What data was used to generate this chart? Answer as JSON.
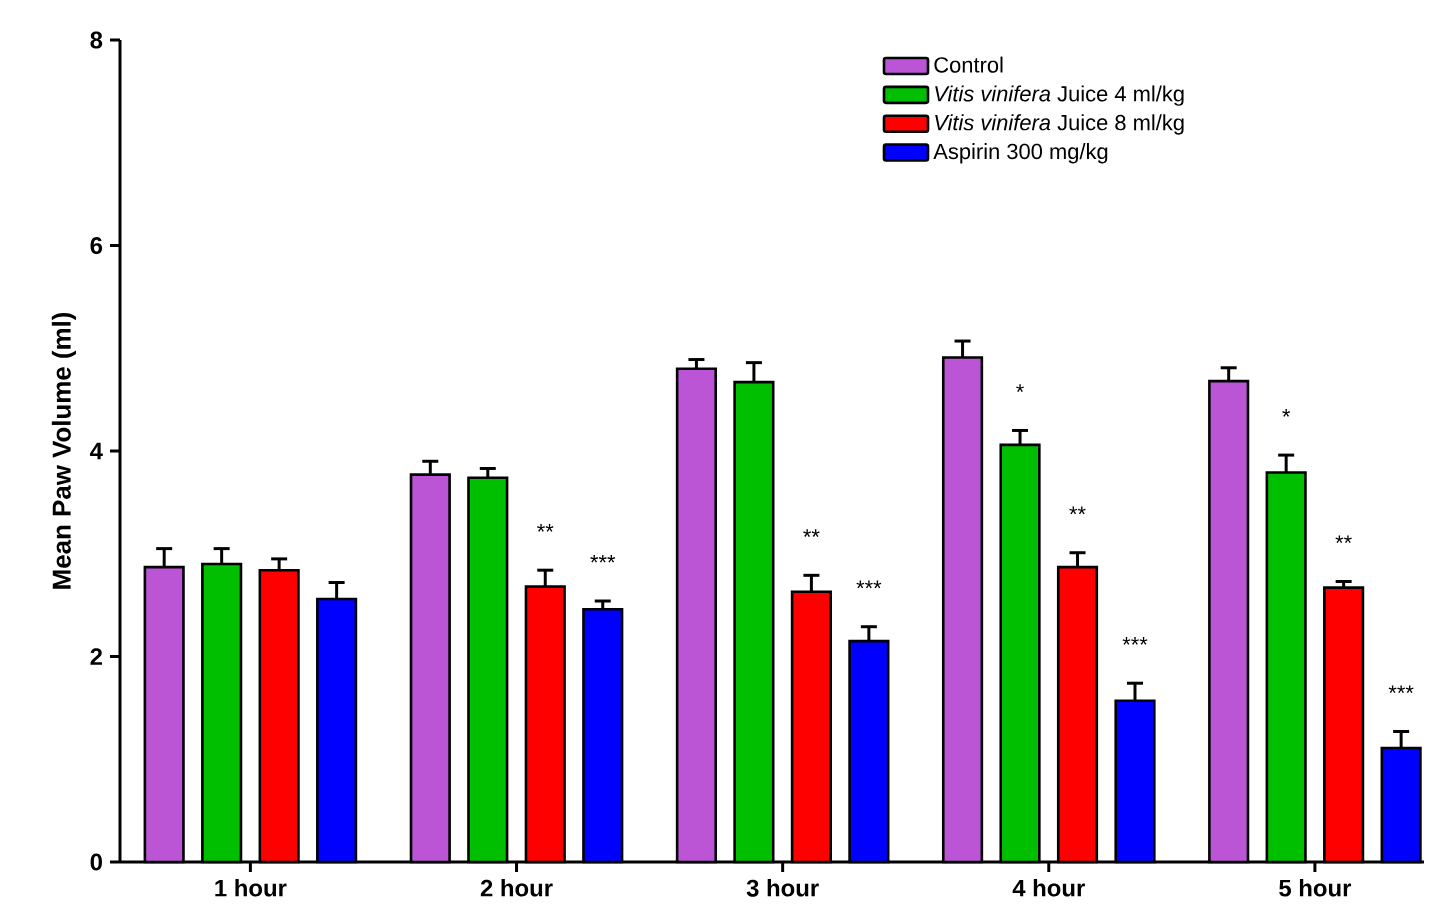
{
  "chart_data": {
    "type": "bar",
    "ylabel": "Mean Paw Volume (ml)",
    "categories": [
      "1 hour",
      "2 hour",
      "3 hour",
      "4 hour",
      "5 hour"
    ],
    "series": [
      {
        "name": "Control",
        "color": "#bb55d6",
        "values": [
          2.87,
          3.77,
          4.8,
          4.91,
          4.68
        ],
        "errors": [
          0.18,
          0.13,
          0.09,
          0.16,
          0.13
        ]
      },
      {
        "name": "*Vitis vinifera* Juice 4 ml/kg",
        "color": "#00bf00",
        "values": [
          2.9,
          3.74,
          4.67,
          4.06,
          3.79
        ],
        "errors": [
          0.15,
          0.09,
          0.19,
          0.14,
          0.17
        ],
        "value_labels": [
          null,
          null,
          null,
          "*",
          "*"
        ]
      },
      {
        "name": "*Vitis vinifera* Juice 8 ml/kg",
        "color": "#ff0000",
        "values": [
          2.84,
          2.68,
          2.63,
          2.87,
          2.67
        ],
        "errors": [
          0.11,
          0.16,
          0.16,
          0.14,
          0.06
        ],
        "value_labels": [
          null,
          "**",
          "**",
          "**",
          "**"
        ]
      },
      {
        "name": "Aspirin 300 mg/kg",
        "color": "#0000ff",
        "values": [
          2.56,
          2.46,
          2.15,
          1.57,
          1.11
        ],
        "errors": [
          0.16,
          0.08,
          0.14,
          0.17,
          0.16
        ],
        "value_labels": [
          null,
          "***",
          "***",
          "***",
          "***"
        ]
      }
    ],
    "ylim": [
      0,
      8
    ],
    "yticks": [
      0,
      2,
      4,
      6,
      8
    ],
    "grid": false,
    "legend": "top right"
  }
}
